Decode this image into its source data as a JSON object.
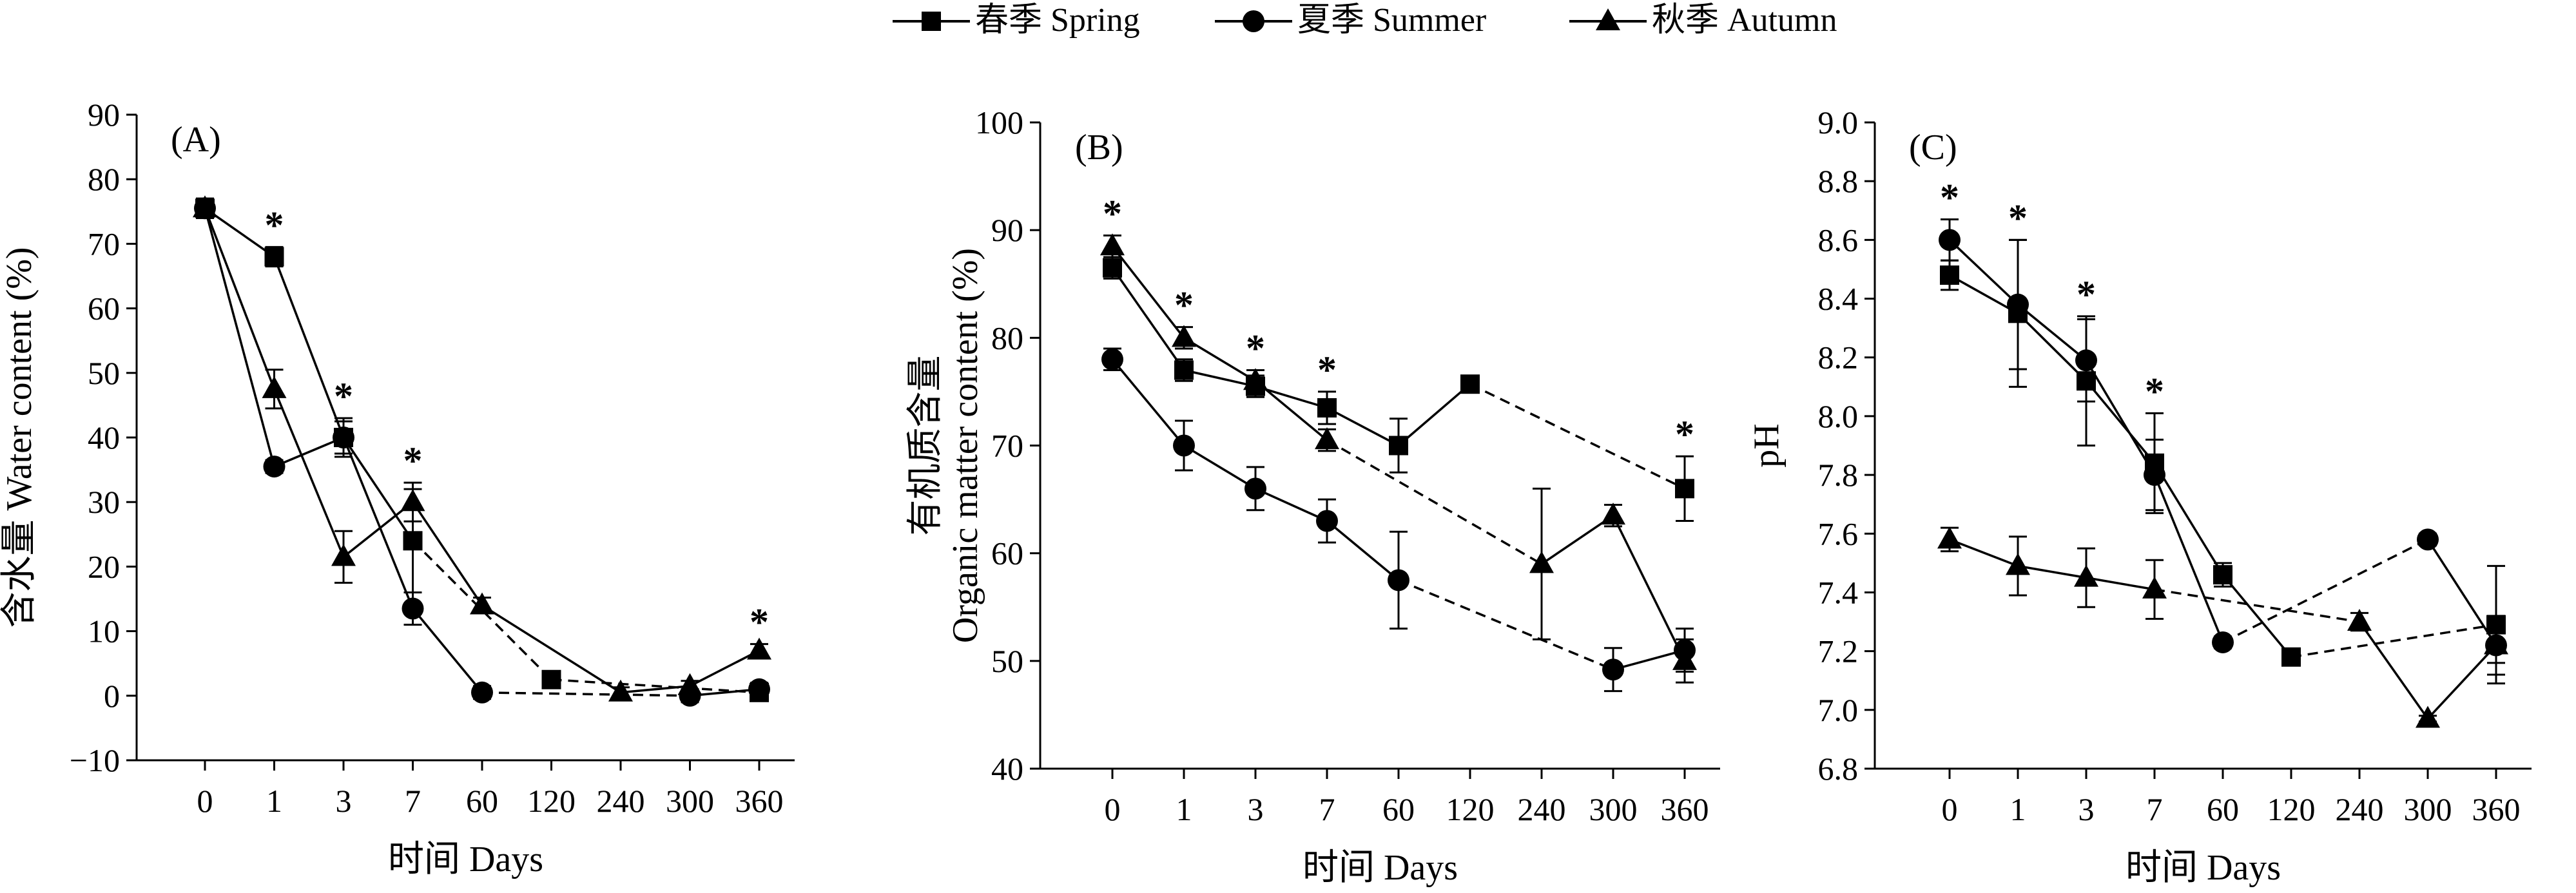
{
  "legend": {
    "items": [
      {
        "label": "春季 Spring",
        "marker": "square"
      },
      {
        "label": "夏季 Summer",
        "marker": "circle"
      },
      {
        "label": "秋季 Autumn",
        "marker": "triangle"
      }
    ]
  },
  "colors": {
    "ink": "#000000",
    "background": "#ffffff"
  },
  "chart_data": [
    {
      "type": "line",
      "panel": "(A)",
      "xlabel": "时间 Days",
      "ylabel": "含水量 Water content (%)",
      "categories": [
        "0",
        "1",
        "3",
        "7",
        "60",
        "120",
        "240",
        "300",
        "360"
      ],
      "ylim": [
        -10,
        90
      ],
      "yticks": [
        "90",
        "80",
        "70",
        "60",
        "50",
        "40",
        "30",
        "20",
        "10",
        "0",
        "−10"
      ],
      "series": [
        {
          "name": "春季 Spring",
          "marker": "square",
          "points": [
            [
              0,
              75.5,
              1.5
            ],
            [
              1,
              68,
              1.5
            ],
            [
              3,
              40,
              3
            ],
            [
              7,
              24,
              8
            ],
            [
              120,
              2.5,
              1.2
            ],
            [
              360,
              0.5,
              0.8
            ]
          ],
          "segments": [
            [
              0,
              1,
              "solid"
            ],
            [
              1,
              3,
              "solid"
            ],
            [
              3,
              7,
              "solid"
            ],
            [
              7,
              120,
              "dashed"
            ],
            [
              120,
              360,
              "dashed"
            ]
          ]
        },
        {
          "name": "夏季 Summer",
          "marker": "circle",
          "points": [
            [
              0,
              75.5,
              1.5
            ],
            [
              1,
              35.5,
              1
            ],
            [
              3,
              40,
              2.5
            ],
            [
              7,
              13.5,
              2.5
            ],
            [
              60,
              0.5,
              1
            ],
            [
              300,
              0,
              1
            ],
            [
              360,
              1,
              1
            ]
          ],
          "segments": [
            [
              0,
              1,
              "solid"
            ],
            [
              1,
              3,
              "solid"
            ],
            [
              3,
              7,
              "solid"
            ],
            [
              7,
              60,
              "solid"
            ],
            [
              60,
              300,
              "dashed"
            ],
            [
              300,
              360,
              "solid"
            ]
          ]
        },
        {
          "name": "秋季 Autumn",
          "marker": "triangle",
          "points": [
            [
              0,
              75.5,
              1.5
            ],
            [
              1,
              47.5,
              3
            ],
            [
              3,
              21.5,
              4
            ],
            [
              7,
              30,
              3
            ],
            [
              60,
              14,
              1.2
            ],
            [
              240,
              0.5,
              0.8
            ],
            [
              300,
              1.5,
              0.8
            ],
            [
              360,
              7,
              1
            ]
          ],
          "segments": [
            [
              0,
              1,
              "solid"
            ],
            [
              1,
              3,
              "solid"
            ],
            [
              3,
              7,
              "solid"
            ],
            [
              7,
              60,
              "solid"
            ],
            [
              60,
              240,
              "solid"
            ],
            [
              240,
              300,
              "solid"
            ],
            [
              300,
              360,
              "solid"
            ]
          ]
        }
      ],
      "significance_at": [
        "1",
        "3",
        "7",
        "360"
      ],
      "significance_symbol": "*"
    },
    {
      "type": "line",
      "panel": "(B)",
      "xlabel": "时间 Days",
      "ylabel_lines": [
        "有机质含量",
        "Organic matter content (%)"
      ],
      "categories": [
        "0",
        "1",
        "3",
        "7",
        "60",
        "120",
        "240",
        "300",
        "360"
      ],
      "ylim": [
        40,
        100
      ],
      "yticks": [
        "100",
        "90",
        "80",
        "70",
        "60",
        "50",
        "40"
      ],
      "series": [
        {
          "name": "春季 Spring",
          "marker": "square",
          "points": [
            [
              0,
              86.5,
              1
            ],
            [
              1,
              77,
              1
            ],
            [
              3,
              75.5,
              1
            ],
            [
              7,
              73.5,
              1.5
            ],
            [
              60,
              70,
              2.5
            ],
            [
              120,
              75.7,
              0.6
            ],
            [
              360,
              66,
              3
            ]
          ],
          "segments": [
            [
              0,
              1,
              "solid"
            ],
            [
              1,
              3,
              "solid"
            ],
            [
              3,
              7,
              "solid"
            ],
            [
              7,
              60,
              "solid"
            ],
            [
              60,
              120,
              "solid"
            ],
            [
              120,
              360,
              "dashed"
            ]
          ]
        },
        {
          "name": "夏季 Summer",
          "marker": "circle",
          "points": [
            [
              0,
              78,
              1
            ],
            [
              1,
              70,
              2.3
            ],
            [
              3,
              66,
              2
            ],
            [
              7,
              63,
              2
            ],
            [
              60,
              57.5,
              4.5
            ],
            [
              300,
              49.2,
              2
            ],
            [
              360,
              51,
              2
            ]
          ],
          "segments": [
            [
              0,
              1,
              "solid"
            ],
            [
              1,
              3,
              "solid"
            ],
            [
              3,
              7,
              "solid"
            ],
            [
              7,
              60,
              "solid"
            ],
            [
              60,
              300,
              "dashed"
            ],
            [
              300,
              360,
              "solid"
            ]
          ]
        },
        {
          "name": "秋季 Autumn",
          "marker": "triangle",
          "points": [
            [
              0,
              88.5,
              1
            ],
            [
              1,
              80,
              1
            ],
            [
              3,
              76,
              1
            ],
            [
              7,
              70.5,
              1
            ],
            [
              240,
              59,
              7
            ],
            [
              300,
              63.5,
              1
            ],
            [
              360,
              50,
              2
            ]
          ],
          "segments": [
            [
              0,
              1,
              "solid"
            ],
            [
              1,
              3,
              "solid"
            ],
            [
              3,
              7,
              "solid"
            ],
            [
              7,
              240,
              "dashed"
            ],
            [
              240,
              300,
              "solid"
            ],
            [
              300,
              360,
              "solid"
            ]
          ]
        }
      ],
      "significance_at": [
        "0",
        "1",
        "3",
        "7",
        "360"
      ],
      "significance_symbol": "*"
    },
    {
      "type": "line",
      "panel": "(C)",
      "xlabel": "时间 Days",
      "ylabel": "pH",
      "categories": [
        "0",
        "1",
        "3",
        "7",
        "60",
        "120",
        "240",
        "300",
        "360"
      ],
      "ylim": [
        6.8,
        9.0
      ],
      "yticks": [
        "9.0",
        "8.8",
        "8.6",
        "8.4",
        "8.2",
        "8.0",
        "7.8",
        "7.6",
        "7.4",
        "7.2",
        "7.0",
        "6.8"
      ],
      "series": [
        {
          "name": "春季 Spring",
          "marker": "square",
          "points": [
            [
              0,
              8.48,
              0.05
            ],
            [
              1,
              8.35,
              0.25
            ],
            [
              3,
              8.12,
              0.22
            ],
            [
              7,
              7.84,
              0.17
            ],
            [
              60,
              7.46,
              0.04
            ],
            [
              120,
              7.18,
              0.02
            ],
            [
              360,
              7.29,
              0.2
            ]
          ],
          "segments": [
            [
              0,
              1,
              "solid"
            ],
            [
              1,
              3,
              "solid"
            ],
            [
              3,
              7,
              "solid"
            ],
            [
              7,
              60,
              "solid"
            ],
            [
              60,
              120,
              "solid"
            ],
            [
              120,
              360,
              "dashed"
            ]
          ]
        },
        {
          "name": "夏季 Summer",
          "marker": "circle",
          "points": [
            [
              0,
              8.6,
              0.07
            ],
            [
              1,
              8.38,
              0.22
            ],
            [
              3,
              8.19,
              0.14
            ],
            [
              7,
              7.8,
              0.12
            ],
            [
              60,
              7.23,
              0.02
            ],
            [
              300,
              7.58,
              0.02
            ],
            [
              360,
              7.22,
              0.1
            ]
          ],
          "segments": [
            [
              0,
              1,
              "solid"
            ],
            [
              1,
              3,
              "solid"
            ],
            [
              3,
              7,
              "solid"
            ],
            [
              7,
              60,
              "solid"
            ],
            [
              60,
              300,
              "dashed"
            ],
            [
              300,
              360,
              "solid"
            ]
          ]
        },
        {
          "name": "秋季 Autumn",
          "marker": "triangle",
          "points": [
            [
              0,
              7.58,
              0.04
            ],
            [
              1,
              7.49,
              0.1
            ],
            [
              3,
              7.45,
              0.1
            ],
            [
              7,
              7.41,
              0.1
            ],
            [
              240,
              7.3,
              0.03
            ],
            [
              300,
              6.97,
              0.01
            ],
            [
              360,
              7.22,
              0.06
            ]
          ],
          "segments": [
            [
              0,
              1,
              "solid"
            ],
            [
              1,
              3,
              "solid"
            ],
            [
              3,
              7,
              "solid"
            ],
            [
              7,
              240,
              "dashed"
            ],
            [
              240,
              300,
              "solid"
            ],
            [
              300,
              360,
              "solid"
            ]
          ]
        }
      ],
      "significance_at": [
        "0",
        "1",
        "3",
        "7"
      ],
      "significance_symbol": "*"
    }
  ]
}
